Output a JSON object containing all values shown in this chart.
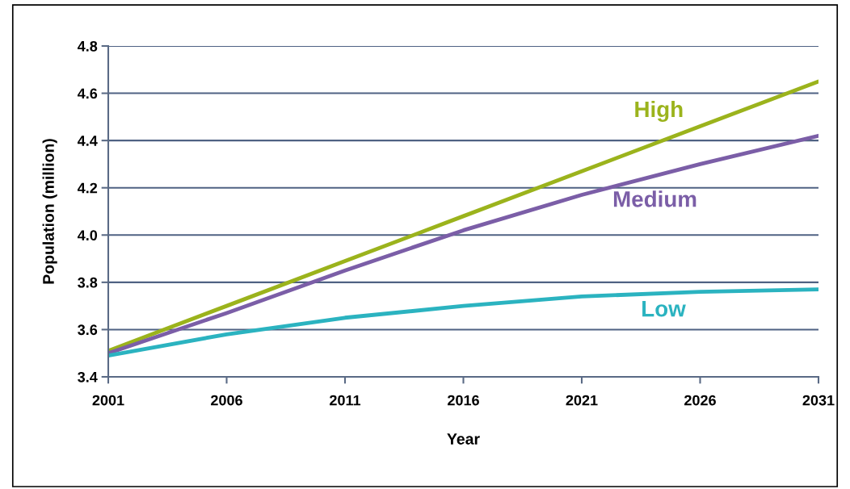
{
  "chart_data": {
    "type": "line",
    "xlabel": "Year",
    "ylabel": "Population (million)",
    "x": [
      2001,
      2006,
      2011,
      2016,
      2021,
      2026,
      2031
    ],
    "xlim": [
      2001,
      2031
    ],
    "xticks": [
      2001,
      2006,
      2011,
      2016,
      2021,
      2026,
      2031
    ],
    "ylim": [
      3.4,
      4.8
    ],
    "yticks": [
      {
        "value": 3.4,
        "label": "3.4"
      },
      {
        "value": 3.6,
        "label": "3.6"
      },
      {
        "value": 3.8,
        "label": "3.8"
      },
      {
        "value": 4.0,
        "label": "4.0"
      },
      {
        "value": 4.2,
        "label": "4.2"
      },
      {
        "value": 4.4,
        "label": "4.4"
      },
      {
        "value": 4.6,
        "label": "4.6"
      },
      {
        "value": 4.8,
        "label": "4.8"
      }
    ],
    "grid": "y",
    "marker": "none",
    "line_style": "solid",
    "series": [
      {
        "name": "High",
        "color": "#9bb31c",
        "values": [
          3.51,
          3.7,
          3.89,
          4.08,
          4.27,
          4.46,
          4.65
        ]
      },
      {
        "name": "Medium",
        "color": "#7b5ea7",
        "values": [
          3.5,
          3.67,
          3.85,
          4.02,
          4.17,
          4.3,
          4.42
        ]
      },
      {
        "name": "Low",
        "color": "#2bb3c0",
        "values": [
          3.49,
          3.58,
          3.65,
          3.7,
          3.74,
          3.76,
          3.77
        ]
      }
    ]
  }
}
